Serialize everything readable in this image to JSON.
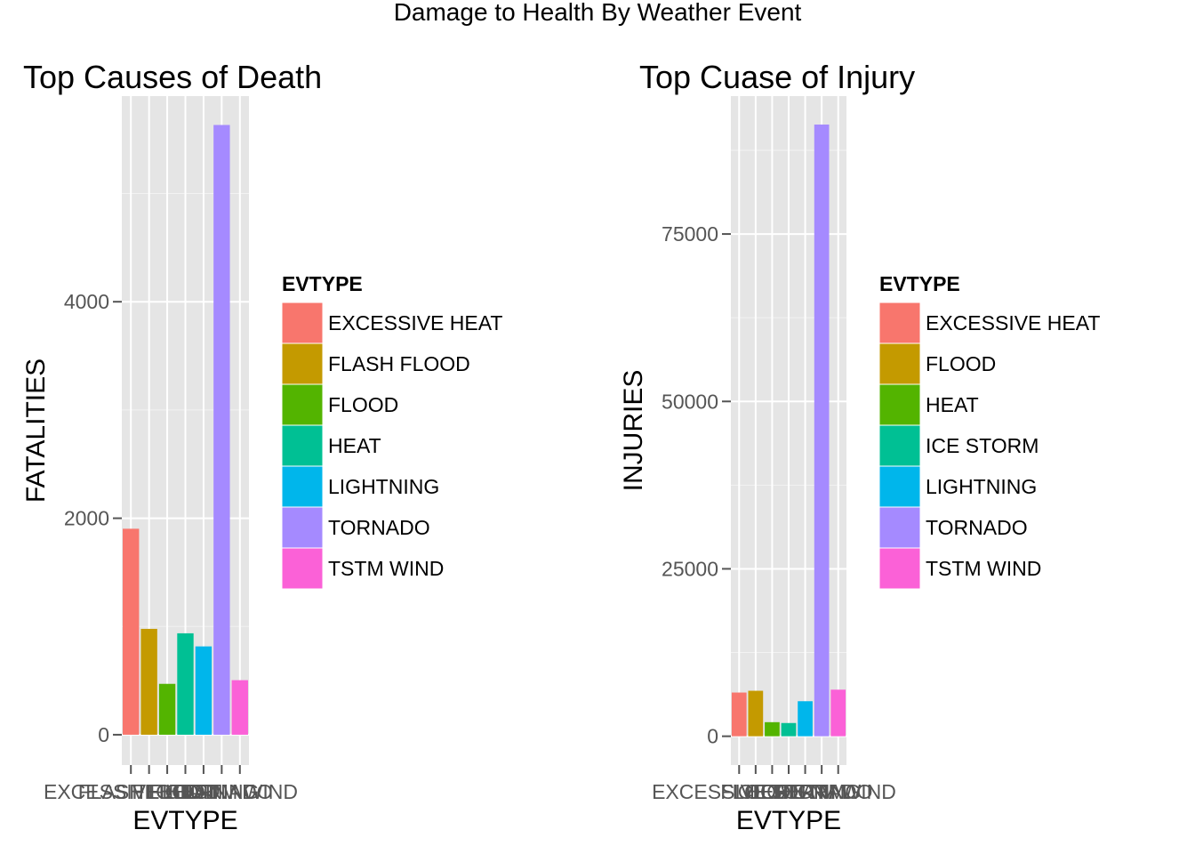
{
  "figure_title": "Damage to Health By Weather Event",
  "chart_data": [
    {
      "type": "bar",
      "title": "Top Causes of Death",
      "xlabel": "EVTYPE",
      "ylabel": "FATALITIES",
      "categories": [
        "EXCESSIVE HEAT",
        "FLASH FLOOD",
        "FLOOD",
        "HEAT",
        "LIGHTNING",
        "TORNADO",
        "TSTM WIND"
      ],
      "values": [
        1903,
        978,
        470,
        937,
        816,
        5633,
        504
      ],
      "colors": [
        "#F8766D",
        "#C49A00",
        "#53B400",
        "#00C094",
        "#00B6EB",
        "#A58AFF",
        "#FB61D7"
      ],
      "yticks": [
        0,
        2000,
        4000
      ],
      "ylim": [
        -280,
        5900
      ],
      "grid": true,
      "legend": {
        "title": "EVTYPE",
        "position": "right",
        "entries": [
          "EXCESSIVE HEAT",
          "FLASH FLOOD",
          "FLOOD",
          "HEAT",
          "LIGHTNING",
          "TORNADO",
          "TSTM WIND"
        ]
      }
    },
    {
      "type": "bar",
      "title": "Top Cuase of Injury",
      "xlabel": "EVTYPE",
      "ylabel": "INJURIES",
      "categories": [
        "EXCESSIVE HEAT",
        "FLOOD",
        "HEAT",
        "ICE STORM",
        "LIGHTNING",
        "TORNADO",
        "TSTM WIND"
      ],
      "values": [
        6525,
        6789,
        2100,
        1975,
        5230,
        91346,
        6957
      ],
      "colors": [
        "#F8766D",
        "#C49A00",
        "#53B400",
        "#00C094",
        "#00B6EB",
        "#A58AFF",
        "#FB61D7"
      ],
      "yticks": [
        0,
        25000,
        50000,
        75000
      ],
      "ylim": [
        -4300,
        95600
      ],
      "grid": true,
      "legend": {
        "title": "EVTYPE",
        "position": "right",
        "entries": [
          "EXCESSIVE HEAT",
          "FLOOD",
          "HEAT",
          "ICE STORM",
          "LIGHTNING",
          "TORNADO",
          "TSTM WIND"
        ]
      }
    }
  ]
}
